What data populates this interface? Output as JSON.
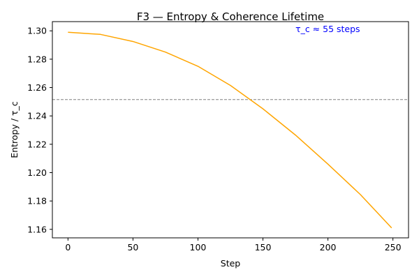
{
  "chart_data": {
    "type": "line",
    "title": "F3 — Entropy & Coherence Lifetime",
    "xlabel": "Step",
    "ylabel": "Entropy / τ_c",
    "xlim": [
      -12,
      262
    ],
    "ylim": [
      1.154,
      1.3065
    ],
    "x_ticks": [
      0,
      50,
      100,
      150,
      200,
      250
    ],
    "x_tick_labels": [
      "0",
      "50",
      "100",
      "150",
      "200",
      "250"
    ],
    "y_ticks": [
      1.16,
      1.18,
      1.2,
      1.22,
      1.24,
      1.26,
      1.28,
      1.3
    ],
    "y_tick_labels": [
      "1.16",
      "1.18",
      "1.20",
      "1.22",
      "1.24",
      "1.26",
      "1.28",
      "1.30"
    ],
    "grid": false,
    "series": [
      {
        "color": "#ffa500",
        "x": [
          0,
          25,
          50,
          75,
          100,
          125,
          150,
          175,
          200,
          225,
          249
        ],
        "y": [
          1.299,
          1.2975,
          1.2925,
          1.285,
          1.275,
          1.2615,
          1.245,
          1.2265,
          1.206,
          1.1845,
          1.161
        ]
      }
    ],
    "reference_line": {
      "y": 1.2515,
      "color": "#808080",
      "style": "dashed"
    },
    "annotation": {
      "text": "τ_c ≈ 55 steps",
      "x": 175,
      "y": 1.3015,
      "color": "#0000ff"
    }
  }
}
